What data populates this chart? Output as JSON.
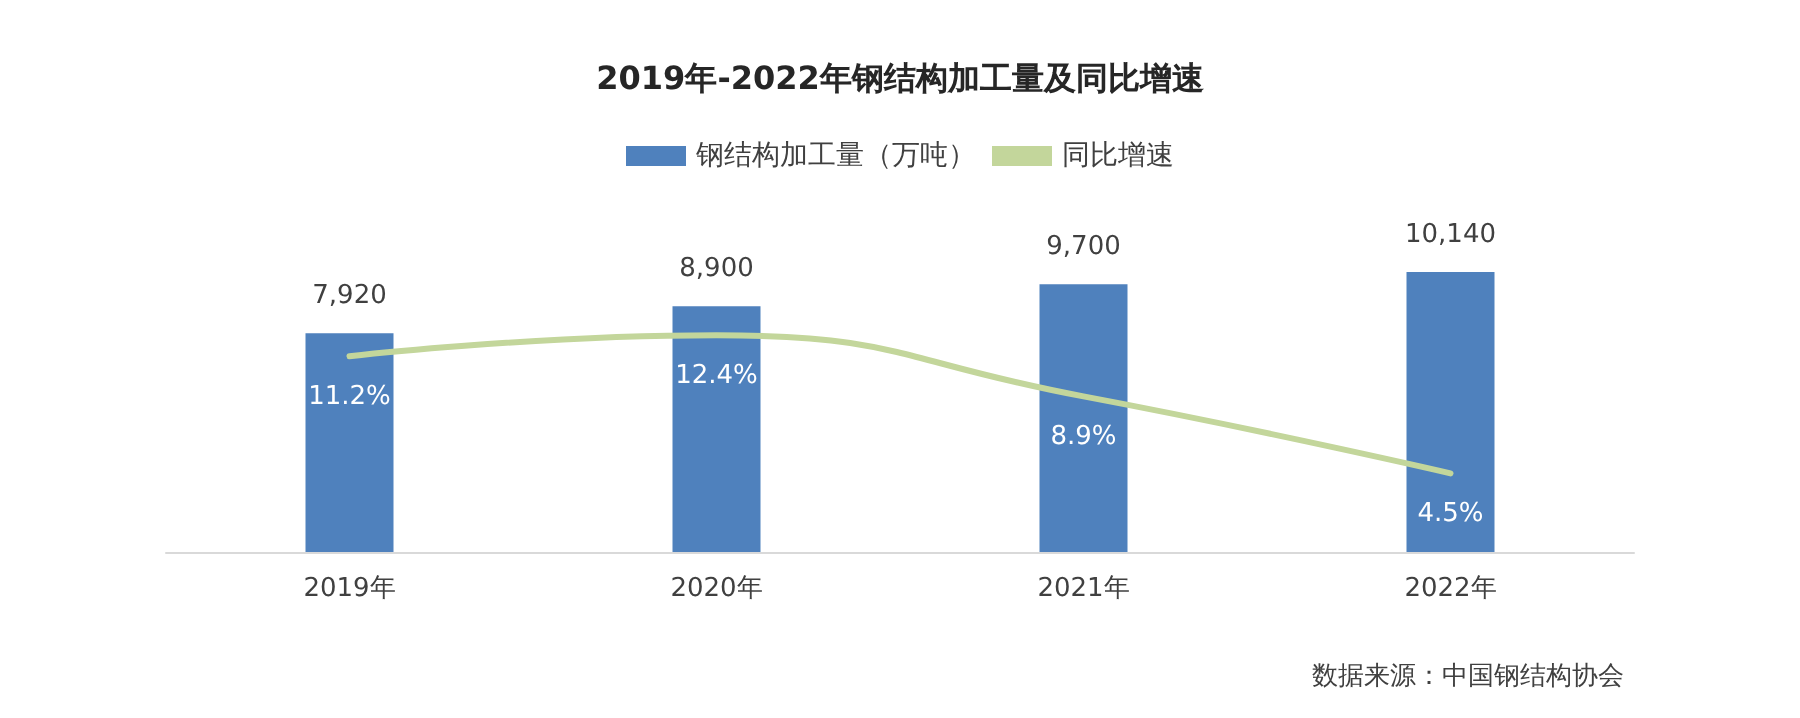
{
  "chart_data": {
    "type": "bar",
    "title": "2019年-2022年钢结构加工量及同比增速",
    "categories": [
      "2019年",
      "2020年",
      "2021年",
      "2022年"
    ],
    "series": [
      {
        "name": "钢结构加工量（万吨）",
        "color": "#4f81bd",
        "values": [
          7920,
          8900,
          9700,
          10140
        ],
        "value_labels": [
          "7,920",
          "8,900",
          "9,700",
          "10,140"
        ]
      },
      {
        "name": "同比增速",
        "type": "line",
        "axis": "y2",
        "color": "#c3d69b",
        "values": [
          11.2,
          12.4,
          8.9,
          4.5
        ],
        "value_labels": [
          "11.2%",
          "12.4%",
          "8.9%",
          "4.5%"
        ]
      }
    ],
    "legend": "top",
    "grid": false,
    "marker": "none",
    "annotations": [
      "数据来源：中国钢结构协会"
    ]
  }
}
